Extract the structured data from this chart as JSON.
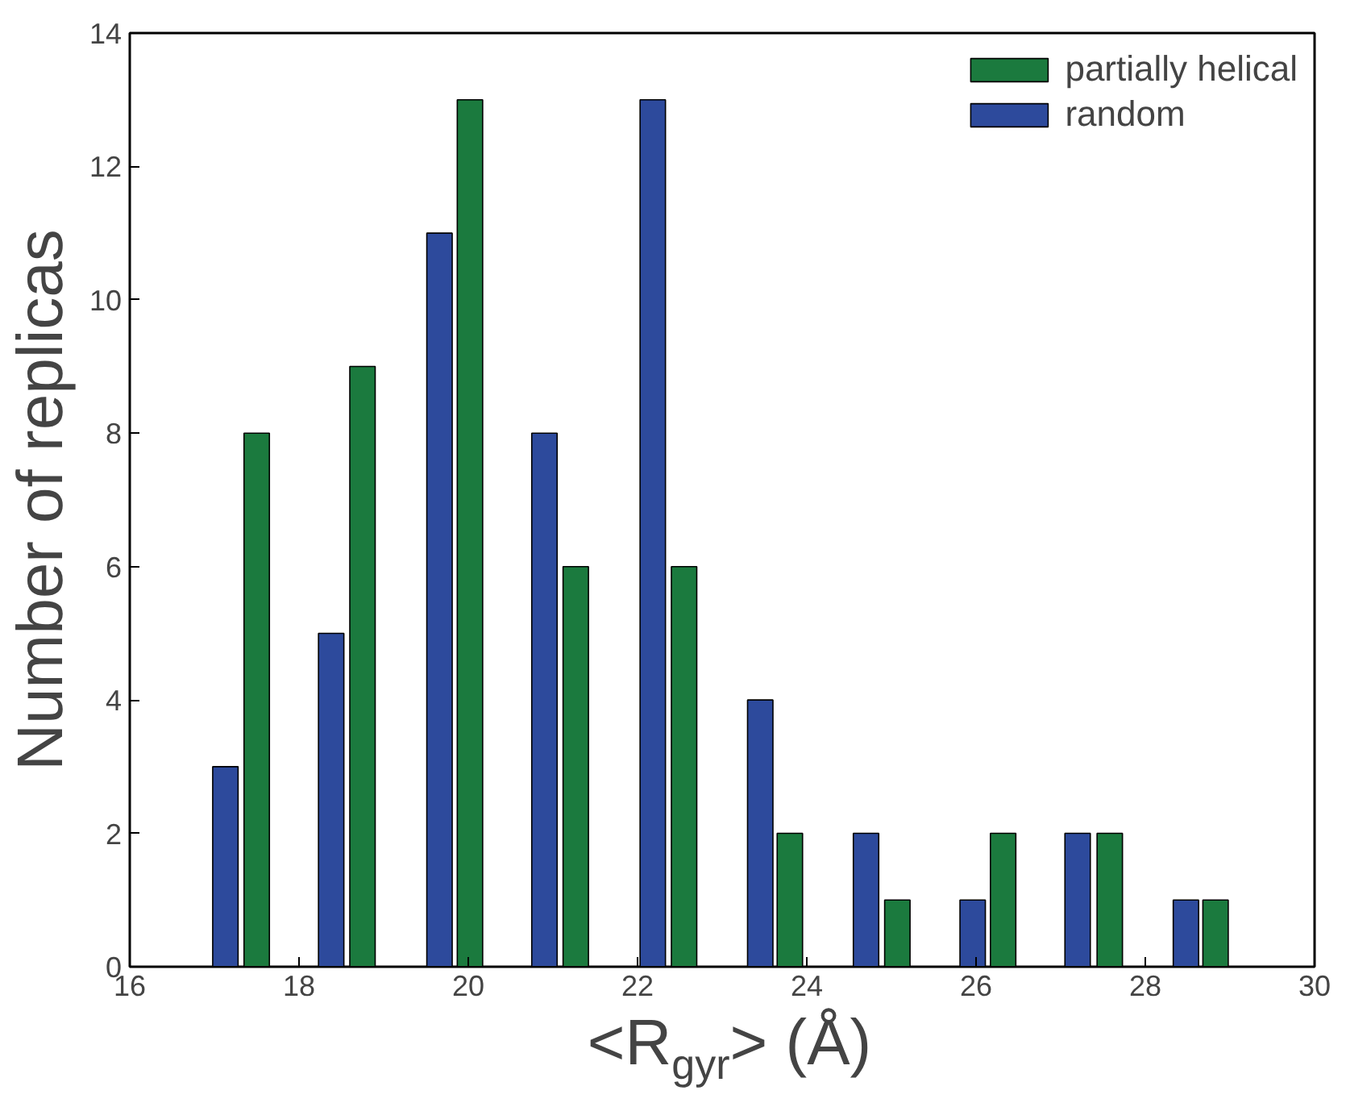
{
  "chart_data": {
    "type": "bar",
    "xlabel": "<R$_{gyr}$> (Å)",
    "ylabel": "Number of replicas",
    "xlim": [
      16,
      30
    ],
    "ylim": [
      0,
      14
    ],
    "xticks": [
      16,
      18,
      20,
      22,
      24,
      26,
      28,
      30
    ],
    "yticks": [
      0,
      2,
      4,
      6,
      8,
      10,
      12,
      14
    ],
    "grid": false,
    "legend": "top right",
    "series": [
      {
        "name": "partially helical",
        "color": "#1b7a3e",
        "x": [
          17.5,
          18.75,
          20.02,
          21.27,
          22.55,
          23.8,
          25.07,
          26.32,
          27.58,
          28.83
        ],
        "values": [
          8,
          9,
          13,
          6,
          6,
          2,
          1,
          2,
          2,
          1
        ]
      },
      {
        "name": "random",
        "color": "#2d4a9c",
        "x": [
          17.13,
          18.38,
          19.66,
          20.9,
          22.18,
          23.45,
          24.7,
          25.96,
          27.2,
          28.48
        ],
        "values": [
          3,
          5,
          11,
          8,
          13,
          4,
          2,
          1,
          2,
          1
        ]
      }
    ]
  }
}
